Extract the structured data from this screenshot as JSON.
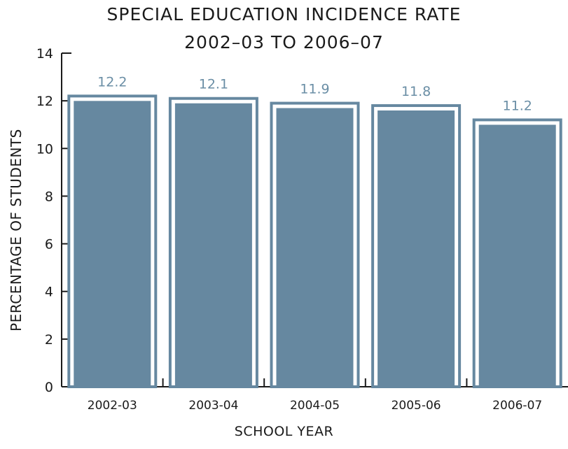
{
  "chart_data": {
    "type": "bar",
    "title": "SPECIAL EDUCATION INCIDENCE RATE",
    "subtitle": "2002–03 TO 2006–07",
    "xlabel": "SCHOOL YEAR",
    "ylabel": "PERCENTAGE OF STUDENTS",
    "categories": [
      "2002-03",
      "2003-04",
      "2004-05",
      "2005-06",
      "2006-07"
    ],
    "values": [
      12.2,
      12.1,
      11.9,
      11.8,
      11.2
    ],
    "value_labels": [
      "12.2",
      "12.1",
      "11.9",
      "11.8",
      "11.2"
    ],
    "ylim": [
      0,
      14
    ],
    "yticks": [
      0,
      2,
      4,
      6,
      8,
      10,
      12,
      14
    ],
    "grid": false,
    "legend": "none",
    "colors": {
      "bar_fill": "#6688a0",
      "bar_outline": "#6688a0",
      "value_label": "#6a8ea5",
      "axis": "#1a1a1a"
    }
  }
}
